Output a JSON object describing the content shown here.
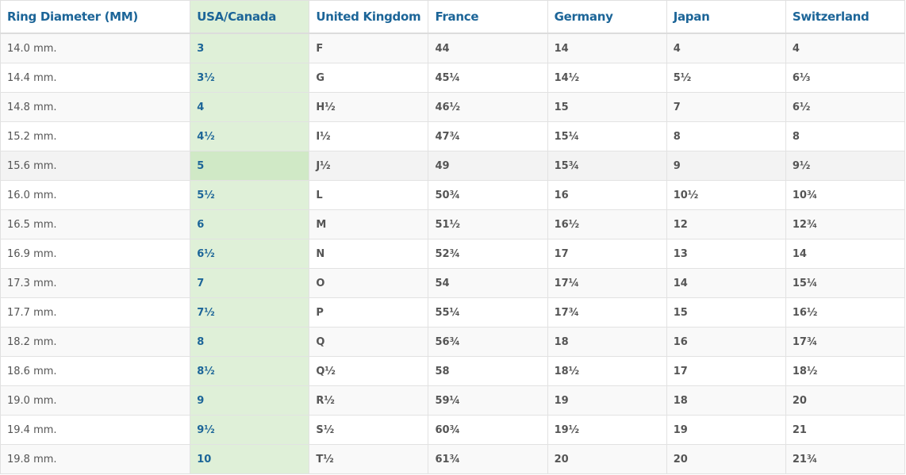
{
  "table": {
    "headers": [
      "Ring Diameter (MM)",
      "USA/Canada",
      "United Kingdom",
      "France",
      "Germany",
      "Japan",
      "Switzerland"
    ],
    "highlighted_column": "USA/Canada",
    "hovered_row": "15.6 mm.",
    "rows": [
      [
        "14.0 mm.",
        "3",
        "F",
        "44",
        "14",
        "4",
        "4"
      ],
      [
        "14.4 mm.",
        "3½",
        "G",
        "45¼",
        "14½",
        "5½",
        "6⅓"
      ],
      [
        "14.8 mm.",
        "4",
        "H½",
        "46½",
        "15",
        "7",
        "6½"
      ],
      [
        "15.2 mm.",
        "4½",
        "I½",
        "47¾",
        "15¼",
        "8",
        "8"
      ],
      [
        "15.6 mm.",
        "5",
        "J½",
        "49",
        "15¾",
        "9",
        "9½"
      ],
      [
        "16.0 mm.",
        "5½",
        "L",
        "50¾",
        "16",
        "10½",
        "10¾"
      ],
      [
        "16.5 mm.",
        "6",
        "M",
        "51½",
        "16½",
        "12",
        "12¾"
      ],
      [
        "16.9 mm.",
        "6½",
        "N",
        "52¾",
        "17",
        "13",
        "14"
      ],
      [
        "17.3 mm.",
        "7",
        "O",
        "54",
        "17¼",
        "14",
        "15¼"
      ],
      [
        "17.7 mm.",
        "7½",
        "P",
        "55¼",
        "17¾",
        "15",
        "16½"
      ],
      [
        "18.2 mm.",
        "8",
        "Q",
        "56¾",
        "18",
        "16",
        "17¾"
      ],
      [
        "18.6 mm.",
        "8½",
        "Q½",
        "58",
        "18½",
        "17",
        "18½"
      ],
      [
        "19.0 mm.",
        "9",
        "R½",
        "59¼",
        "19",
        "18",
        "20"
      ],
      [
        "19.4 mm.",
        "9½",
        "S½",
        "60¾",
        "19½",
        "19",
        "21"
      ],
      [
        "19.8 mm.",
        "10",
        "T½",
        "61¾",
        "20",
        "20",
        "21¾"
      ]
    ]
  },
  "colors": {
    "header_text": "#1c6598",
    "highlight_column": "#dff0d8",
    "highlight_hover": "#d0e9c6",
    "body_text": "#555555"
  }
}
